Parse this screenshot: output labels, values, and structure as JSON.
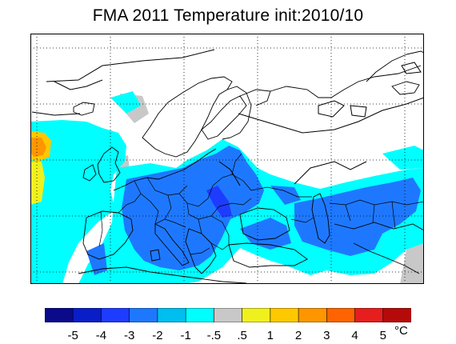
{
  "title": "FMA 2011 Temperature init:2010/10",
  "legend": {
    "colors": [
      "#0a0a8a",
      "#0a1ec8",
      "#1e3cff",
      "#1e78ff",
      "#00bef0",
      "#00ffff",
      "#c8c8c8",
      "#f0f01e",
      "#ffc800",
      "#ff9600",
      "#ff6400",
      "#e61e1e",
      "#b40a0a"
    ],
    "labels": [
      "-5",
      "-4",
      "-3",
      "-2",
      "-1",
      "-.5",
      ".5",
      "1",
      "2",
      "3",
      "4",
      "5"
    ],
    "unit": "°C"
  }
}
